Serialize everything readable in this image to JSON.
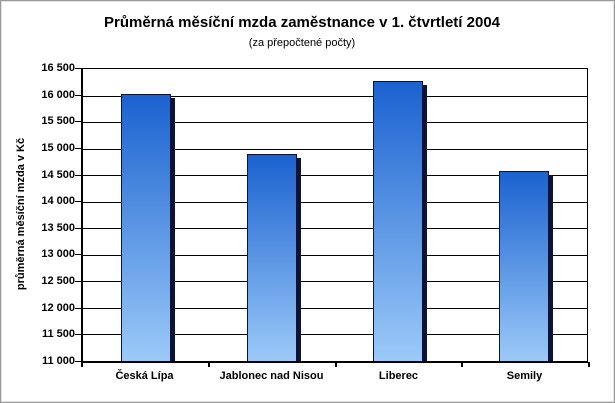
{
  "title": "Průměrná měsíční mzda zaměstnance v 1. čtvrtletí 2004",
  "subtitle": "(za přepočtené počty)",
  "chart_data": {
    "type": "bar",
    "title": "Průměrná měsíční mzda zaměstnance v 1. čtvrtletí 2004",
    "subtitle": "(za přepočtené počty)",
    "categories": [
      "Česká Lípa",
      "Jablonec nad Nisou",
      "Liberec",
      "Semily"
    ],
    "values": [
      16030,
      14900,
      16280,
      14570
    ],
    "xlabel": "",
    "ylabel": "průměrná měsíční mzda v Kč",
    "ylim": [
      11000,
      16500
    ],
    "ytick_step": 500,
    "ytick_labels": [
      "16 500",
      "16 000",
      "15 500",
      "15 000",
      "14 500",
      "14 000",
      "13 500",
      "13 000",
      "12 500",
      "12 000",
      "11 500",
      "11 000"
    ],
    "grid": true,
    "legend": false,
    "colors": {
      "bar_gradient_top": "#1b62d0",
      "bar_gradient_bottom": "#9ccaf8",
      "bar_border": "#0a1340",
      "bar_shadow": "#0d1333",
      "gridline": "#000000",
      "axis": "#000000",
      "background": "#ffffff",
      "frame_border": "#9a9a9a"
    }
  }
}
